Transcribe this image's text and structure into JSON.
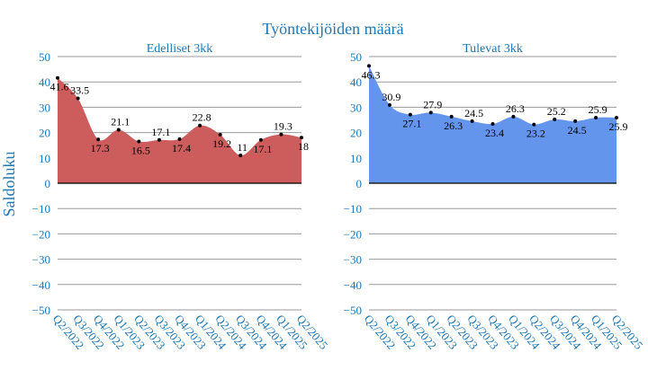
{
  "figure": {
    "title": "Työntekijöiden määrä",
    "ylabel": "Saldoluku",
    "title_color": "#1f77b4",
    "axis_color": "#1f77b4"
  },
  "chart_data": [
    {
      "type": "area",
      "title": "Edelliset 3kk",
      "fill_color": "#cd5c5c",
      "ylim": [
        -50,
        50
      ],
      "yticks": [
        50,
        40,
        30,
        20,
        10,
        0,
        -10,
        -20,
        -30,
        -40,
        -50
      ],
      "xticks": [
        "Q2/2022",
        "Q3/2022",
        "Q4/2022",
        "Q1/2023",
        "Q2/2023",
        "Q3/2023",
        "Q4/2023",
        "Q1/2024",
        "Q2/2024",
        "Q3/2024",
        "Q4/2024",
        "Q1/2025",
        "Q2/2025"
      ],
      "categories": [
        "Q2/2022",
        "Q3/2022",
        "Q4/2022",
        "Q1/2023",
        "Q2/2023",
        "Q3/2023",
        "Q4/2023",
        "Q1/2024",
        "Q2/2024",
        "Q3/2024",
        "Q4/2024",
        "Q1/2025",
        "Q2/2025"
      ],
      "values": [
        41.6,
        33.5,
        17.3,
        21.1,
        16.5,
        17.1,
        17.4,
        22.8,
        19.2,
        11,
        17.1,
        19.3,
        18
      ],
      "labels": [
        "41.6",
        "33.5",
        "17.3",
        "21.1",
        "16.5",
        "17.1",
        "17.4",
        "22.8",
        "19.2",
        "11",
        "17.1",
        "19.3",
        "18"
      ],
      "grid": true
    },
    {
      "type": "area",
      "title": "Tulevat 3kk",
      "fill_color": "#6495ed",
      "ylim": [
        -50,
        50
      ],
      "yticks": [
        50,
        40,
        30,
        20,
        10,
        0,
        -10,
        -20,
        -30,
        -40,
        -50
      ],
      "xticks": [
        "Q2/2022",
        "Q3/2022",
        "Q4/2022",
        "Q1/2023",
        "Q2/2023",
        "Q3/2023",
        "Q4/2023",
        "Q1/2024",
        "Q2/2024",
        "Q3/2024",
        "Q4/2024",
        "Q1/2025",
        "Q2/2025"
      ],
      "categories": [
        "Q2/2022",
        "Q3/2022",
        "Q4/2022",
        "Q1/2023",
        "Q2/2023",
        "Q3/2023",
        "Q4/2023",
        "Q1/2024",
        "Q2/2024",
        "Q3/2024",
        "Q4/2024",
        "Q1/2025",
        "Q2/2025"
      ],
      "values": [
        46.3,
        30.9,
        27.1,
        27.9,
        26.3,
        24.5,
        23.4,
        26.3,
        23.2,
        25.2,
        24.5,
        25.9,
        25.9
      ],
      "labels": [
        "46.3",
        "30.9",
        "27.1",
        "27.9",
        "26.3",
        "24.5",
        "23.4",
        "26.3",
        "23.2",
        "25.2",
        "24.5",
        "25.9",
        "25.9"
      ],
      "grid": true
    }
  ]
}
